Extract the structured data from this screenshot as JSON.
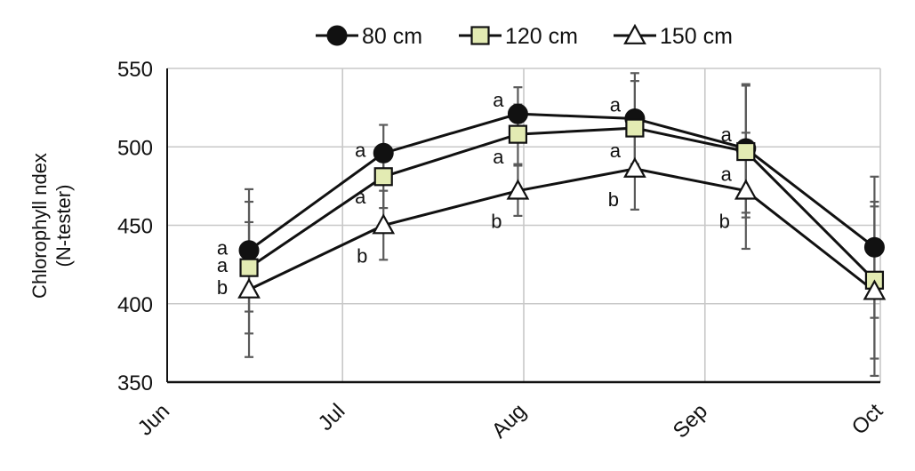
{
  "chart_data": {
    "type": "line",
    "xlabel": "",
    "ylabel": [
      "Chlorophyll ndex",
      "(N-tester)"
    ],
    "ylim": [
      350,
      550
    ],
    "yticks": [
      350,
      400,
      450,
      500,
      550
    ],
    "xlim": [
      "2015-06-01",
      "2015-10-01"
    ],
    "xticks": [
      {
        "label": "Jun",
        "date": "2015-06-01"
      },
      {
        "label": "Jul",
        "date": "2015-07-01"
      },
      {
        "label": "Aug",
        "date": "2015-08-01"
      },
      {
        "label": "Sep",
        "date": "2015-09-01"
      },
      {
        "label": "Oct",
        "date": "2015-10-01"
      }
    ],
    "grid": true,
    "legend": "top",
    "x": [
      "2015-06-15",
      "2015-07-08",
      "2015-07-31",
      "2015-08-20",
      "2015-09-08",
      "2015-09-30"
    ],
    "series": [
      {
        "name": "80 cm",
        "marker": "circle",
        "fill": "#111111",
        "values": [
          434,
          496,
          521,
          518,
          499,
          436
        ],
        "error": [
          39,
          18,
          17,
          29,
          41,
          45
        ],
        "labels": [
          "a",
          "a",
          "a",
          "a",
          "a",
          ""
        ]
      },
      {
        "name": "120 cm",
        "marker": "square",
        "fill": "#e3ebb3",
        "values": [
          423,
          481,
          508,
          512,
          497,
          415
        ],
        "error": [
          42,
          20,
          19,
          30,
          42,
          50
        ],
        "labels": [
          "a",
          "",
          "a",
          "a",
          "a",
          ""
        ]
      },
      {
        "name": "150 cm",
        "marker": "triangle",
        "fill": "#ffffff",
        "values": [
          409,
          450,
          472,
          486,
          472,
          408
        ],
        "error": [
          43,
          22,
          16,
          26,
          37,
          54
        ],
        "labels": [
          "b",
          "b",
          "b",
          "b",
          "b",
          ""
        ]
      }
    ],
    "significance_labels_extra": [
      {
        "date": "2015-07-08",
        "value": 496,
        "side": "left",
        "text": "a"
      },
      {
        "date": "2015-07-08",
        "value": 465,
        "side": "left",
        "text": "a"
      }
    ],
    "colors": {
      "line": "#111111",
      "error_bar": "#5a5a5a",
      "grid": "#c8c8c8"
    }
  }
}
